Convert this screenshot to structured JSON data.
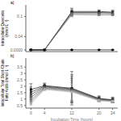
{
  "chart_data": [
    {
      "type": "line",
      "annotation": "a)",
      "y_label": "Intracellular Quercetin\n(mmol L⁻¹)",
      "x": [
        0,
        4,
        12,
        20,
        24
      ],
      "xlim": [
        -1.5,
        25.5
      ],
      "xticks": [
        0,
        4,
        12,
        20,
        24
      ],
      "ylim": [
        -0.005,
        0.135
      ],
      "yticks": [
        {
          "value": 0,
          "label": "0.0000"
        },
        0.04,
        0.1
      ],
      "tick_labels": "y",
      "series": [
        {
          "color": "#111111",
          "marker": "square",
          "values": [
            0.0002,
            0.0002,
            0.115,
            0.115,
            0.113
          ],
          "errors": [
            0.0001,
            0.0001,
            0.01,
            0.005,
            0.006
          ]
        },
        {
          "color": "#333333",
          "marker": "square",
          "values": [
            0.0002,
            0.0002,
            0.112,
            0.112,
            0.111
          ],
          "errors": [
            0.0001,
            0.0001,
            0.009,
            0.004,
            0.005
          ]
        },
        {
          "color": "#555555",
          "marker": "square",
          "values": [
            0.0002,
            0.0002,
            0.109,
            0.109,
            0.109
          ],
          "errors": [
            0.0001,
            0.0001,
            0.008,
            0.004,
            0.004
          ]
        },
        {
          "color": "#777777",
          "marker": "square",
          "values": [
            0.0002,
            0.0002,
            0.106,
            0.105,
            0.105
          ],
          "errors": [
            0.0001,
            0.0001,
            0.007,
            0.003,
            0.003
          ]
        },
        {
          "color": "#000000",
          "marker": "circle",
          "values": [
            0.0002,
            0.0002,
            0.0002,
            0.0002,
            0.0002
          ],
          "errors": [
            5e-05,
            5e-05,
            5e-05,
            5e-05,
            5e-05
          ]
        }
      ]
    },
    {
      "type": "line",
      "annotation": "b)",
      "y_label": "Intracellular Total Short-Chain\nFatty Acids (mmol L⁻¹)",
      "x_label": "Incubation Time (hours)",
      "x": [
        0,
        4,
        12,
        20,
        24
      ],
      "xlim": [
        -1.5,
        25.5
      ],
      "xticks": [
        0,
        4,
        12,
        20,
        24
      ],
      "ylim": [
        0.3,
        4.2
      ],
      "yticks": [
        0.5,
        1,
        1.5,
        2,
        2.5,
        3,
        3.5
      ],
      "series": [
        {
          "color": "#111111",
          "marker": "square",
          "values": [
            1.75,
            2.05,
            1.85,
            1.05,
            0.95
          ],
          "errors": [
            0.45,
            0.2,
            1.3,
            0.2,
            0.2
          ]
        },
        {
          "color": "#2a2a2a",
          "marker": "square",
          "values": [
            1.55,
            2.0,
            1.8,
            1.02,
            0.92
          ],
          "errors": [
            0.4,
            0.18,
            1.1,
            0.18,
            0.18
          ]
        },
        {
          "color": "#444444",
          "marker": "square",
          "values": [
            1.35,
            1.95,
            1.75,
            0.99,
            0.9
          ],
          "errors": [
            0.35,
            0.16,
            1.0,
            0.16,
            0.16
          ]
        },
        {
          "color": "#5a5a5a",
          "marker": "square",
          "values": [
            1.15,
            1.9,
            1.7,
            0.96,
            0.88
          ],
          "errors": [
            0.3,
            0.14,
            0.9,
            0.14,
            0.14
          ]
        },
        {
          "color": "#707070",
          "marker": "square",
          "values": [
            0.95,
            1.85,
            1.65,
            0.93,
            0.86
          ],
          "errors": [
            0.25,
            0.12,
            0.8,
            0.12,
            0.12
          ]
        },
        {
          "color": "#909090",
          "marker": "square",
          "values": [
            0.8,
            1.8,
            1.6,
            0.9,
            0.84
          ],
          "errors": [
            0.2,
            0.1,
            0.7,
            0.1,
            0.1
          ]
        },
        {
          "color": "#b0b0b0",
          "marker": "square",
          "values": [
            0.65,
            1.75,
            1.55,
            0.87,
            0.82
          ],
          "errors": [
            0.15,
            0.08,
            0.6,
            0.08,
            0.08
          ]
        }
      ]
    }
  ]
}
